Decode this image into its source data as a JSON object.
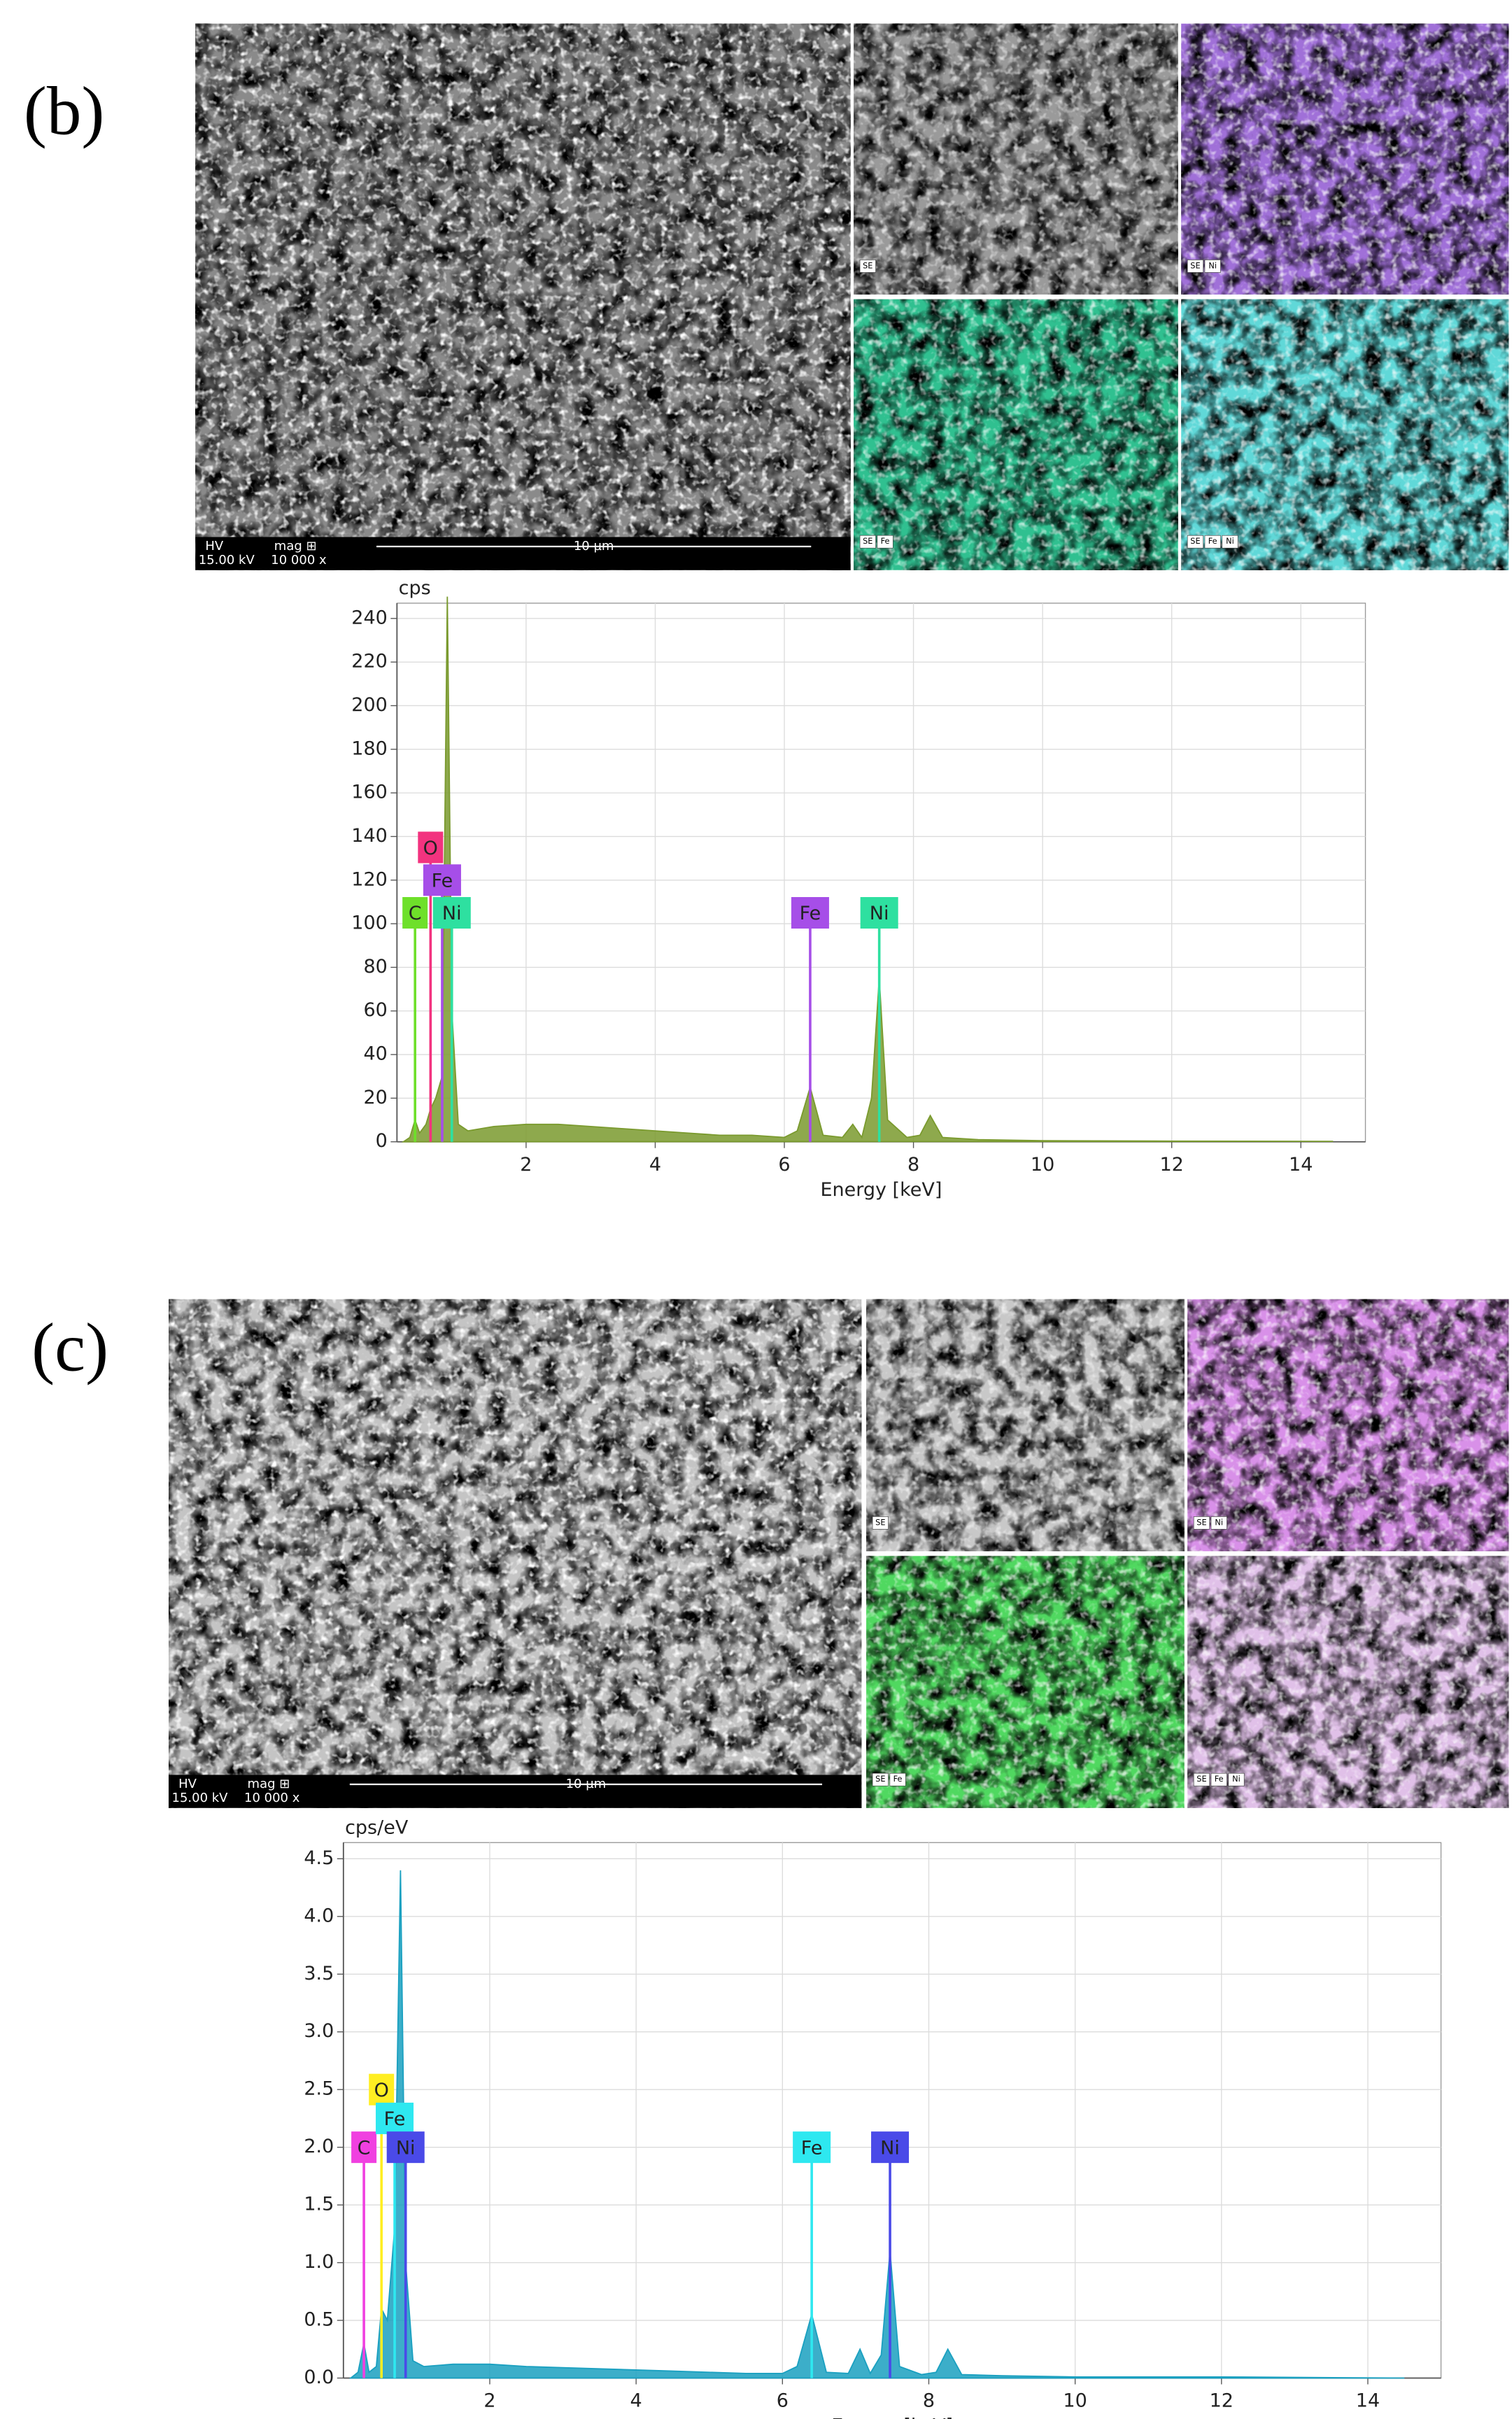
{
  "panels": [
    {
      "label": "(b)",
      "sem": {
        "hv": "HV",
        "hv_value": "15.00 kV",
        "mag": "mag ⊞",
        "mag_value": "10 000 x",
        "scale": "10 µm",
        "tiles": [
          {
            "tags": [
              "SE"
            ],
            "color": "#9a9a9a"
          },
          {
            "tags": [
              "SE",
              "Ni"
            ],
            "color": "#a070d8"
          },
          {
            "tags": [
              "SE",
              "Fe"
            ],
            "color": "#30c090"
          },
          {
            "tags": [
              "SE",
              "Fe",
              "Ni"
            ],
            "color": "#60d8d8"
          }
        ]
      }
    },
    {
      "label": "(c)",
      "sem": {
        "hv": "HV",
        "hv_value": "15.00 kV",
        "mag": "mag ⊞",
        "mag_value": "10 000 x",
        "scale": "10 µm",
        "tiles": [
          {
            "tags": [
              "SE"
            ],
            "color": "#c8c8c8"
          },
          {
            "tags": [
              "SE",
              "Ni"
            ],
            "color": "#d890e8"
          },
          {
            "tags": [
              "SE",
              "Fe"
            ],
            "color": "#50d860"
          },
          {
            "tags": [
              "SE",
              "Fe",
              "Ni"
            ],
            "color": "#e0c0e8"
          }
        ]
      }
    }
  ],
  "chart_data": [
    {
      "type": "area",
      "y_label": "cps",
      "x_label": "Energy [keV]",
      "xlim": [
        0,
        15
      ],
      "xticks": [
        2,
        4,
        6,
        8,
        10,
        12,
        14
      ],
      "ylim": [
        0,
        247
      ],
      "yticks": [
        0,
        20,
        40,
        60,
        80,
        100,
        120,
        140,
        160,
        180,
        200,
        220,
        240
      ],
      "grid": true,
      "x": [
        0.1,
        0.2,
        0.28,
        0.35,
        0.45,
        0.52,
        0.6,
        0.7,
        0.78,
        0.85,
        0.95,
        1.1,
        1.5,
        2,
        2.5,
        3,
        3.5,
        4,
        4.5,
        5,
        5.5,
        6,
        6.2,
        6.4,
        6.6,
        6.9,
        7.06,
        7.2,
        7.35,
        7.47,
        7.6,
        7.9,
        8.1,
        8.26,
        8.45,
        9,
        10,
        12,
        14.5
      ],
      "series": [
        {
          "color": "#7a9a2e",
          "values": [
            0,
            2,
            10,
            4,
            8,
            15,
            20,
            30,
            250,
            60,
            8,
            5,
            7,
            8,
            8,
            7,
            6,
            5,
            4,
            3,
            3,
            2,
            5,
            25,
            3,
            2,
            8,
            2,
            20,
            75,
            10,
            2,
            3,
            12,
            2,
            1,
            0.5,
            0.3,
            0.2
          ]
        }
      ],
      "markers": [
        {
          "label": "C",
          "x": 0.28,
          "y": 105,
          "color": "#6ee02a"
        },
        {
          "label": "O",
          "x": 0.52,
          "y": 135,
          "color": "#f2337f"
        },
        {
          "label": "Fe",
          "x": 0.7,
          "y": 120,
          "color": "#a64ee8"
        },
        {
          "label": "Ni",
          "x": 0.85,
          "y": 105,
          "color": "#2ee0a0"
        },
        {
          "label": "Fe",
          "x": 6.4,
          "y": 105,
          "color": "#a64ee8"
        },
        {
          "label": "Ni",
          "x": 7.47,
          "y": 105,
          "color": "#2ee0a0"
        }
      ]
    },
    {
      "type": "area",
      "y_label": "cps/eV",
      "x_label": "Energy [keV]",
      "xlim": [
        0,
        15
      ],
      "xticks": [
        2,
        4,
        6,
        8,
        10,
        12,
        14
      ],
      "ylim": [
        0,
        4.64
      ],
      "yticks": [
        {
          "value": 0,
          "label": "0.0"
        },
        0.5,
        {
          "value": 1,
          "label": "1.0"
        },
        1.5,
        {
          "value": 2,
          "label": "2.0"
        },
        2.5,
        {
          "value": 3,
          "label": "3.0"
        },
        3.5,
        {
          "value": 4,
          "label": "4.0"
        },
        4.5
      ],
      "grid": true,
      "x": [
        0.1,
        0.2,
        0.28,
        0.35,
        0.45,
        0.52,
        0.6,
        0.7,
        0.78,
        0.85,
        0.95,
        1.1,
        1.5,
        2,
        2.5,
        3,
        3.5,
        4,
        4.5,
        5,
        5.5,
        6,
        6.2,
        6.4,
        6.6,
        6.9,
        7.06,
        7.2,
        7.35,
        7.47,
        7.6,
        7.9,
        8.1,
        8.26,
        8.45,
        9,
        10,
        12,
        14.5
      ],
      "series": [
        {
          "color": "#1aa0c0",
          "values": [
            0,
            0.05,
            0.3,
            0.05,
            0.1,
            0.6,
            0.5,
            1.3,
            4.4,
            1.0,
            0.15,
            0.1,
            0.12,
            0.12,
            0.1,
            0.09,
            0.08,
            0.07,
            0.06,
            0.05,
            0.04,
            0.04,
            0.1,
            0.55,
            0.05,
            0.04,
            0.25,
            0.04,
            0.2,
            1.1,
            0.1,
            0.03,
            0.05,
            0.25,
            0.03,
            0.02,
            0.01,
            0.01,
            0
          ]
        }
      ],
      "markers": [
        {
          "label": "C",
          "x": 0.28,
          "y": 2.0,
          "color": "#f040e0"
        },
        {
          "label": "O",
          "x": 0.52,
          "y": 2.5,
          "color": "#ffee22"
        },
        {
          "label": "Fe",
          "x": 0.7,
          "y": 2.25,
          "color": "#2ee8f0"
        },
        {
          "label": "Ni",
          "x": 0.85,
          "y": 2.0,
          "color": "#4a4ae8"
        },
        {
          "label": "Fe",
          "x": 6.4,
          "y": 2.0,
          "color": "#2ee8f0"
        },
        {
          "label": "Ni",
          "x": 7.47,
          "y": 2.0,
          "color": "#4a4ae8"
        }
      ]
    }
  ]
}
